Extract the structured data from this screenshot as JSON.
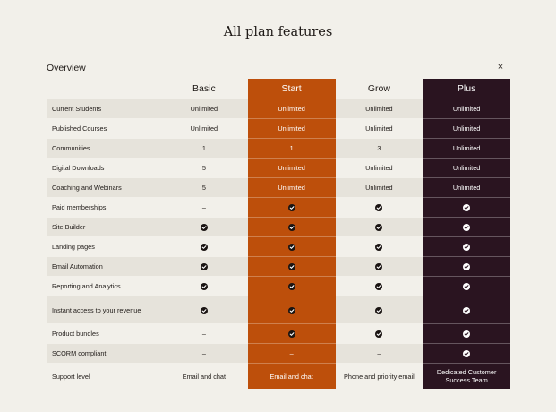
{
  "page_title": "All plan features",
  "overview": {
    "title": "Overview",
    "close_icon": "close-icon",
    "close_glyph": "×"
  },
  "plans": [
    "Basic",
    "Start",
    "Grow",
    "Plus"
  ],
  "colors": {
    "start": "#bd4f0b",
    "plus": "#2a1420",
    "background": "#f2f0ea",
    "row_alt": "#e6e3db"
  },
  "rows": [
    {
      "feature": "Current Students",
      "values": [
        "Unlimited",
        "Unlimited",
        "Unlimited",
        "Unlimited"
      ]
    },
    {
      "feature": "Published Courses",
      "values": [
        "Unlimited",
        "Unlimited",
        "Unlimited",
        "Unlimited"
      ]
    },
    {
      "feature": "Communities",
      "values": [
        "1",
        "1",
        "3",
        "Unlimited"
      ]
    },
    {
      "feature": "Digital Downloads",
      "values": [
        "5",
        "Unlimited",
        "Unlimited",
        "Unlimited"
      ]
    },
    {
      "feature": "Coaching and Webinars",
      "values": [
        "5",
        "Unlimited",
        "Unlimited",
        "Unlimited"
      ]
    },
    {
      "feature": "Paid memberships",
      "values": [
        "–",
        "check",
        "check",
        "check"
      ]
    },
    {
      "feature": "Site Builder",
      "values": [
        "check",
        "check",
        "check",
        "check"
      ]
    },
    {
      "feature": "Landing pages",
      "values": [
        "check",
        "check",
        "check",
        "check"
      ]
    },
    {
      "feature": "Email Automation",
      "values": [
        "check",
        "check",
        "check",
        "check"
      ]
    },
    {
      "feature": "Reporting and Analytics",
      "values": [
        "check",
        "check",
        "check",
        "check"
      ]
    },
    {
      "feature": "Instant access to your revenue",
      "values": [
        "check",
        "check",
        "check",
        "check"
      ]
    },
    {
      "feature": "Product bundles",
      "values": [
        "–",
        "check",
        "check",
        "check"
      ]
    },
    {
      "feature": "SCORM compliant",
      "values": [
        "–",
        "–",
        "–",
        "check"
      ]
    },
    {
      "feature": "Support level",
      "values": [
        "Email and chat",
        "Email and chat",
        "Phone and priority email",
        "Dedicated Customer Success Team"
      ]
    }
  ]
}
